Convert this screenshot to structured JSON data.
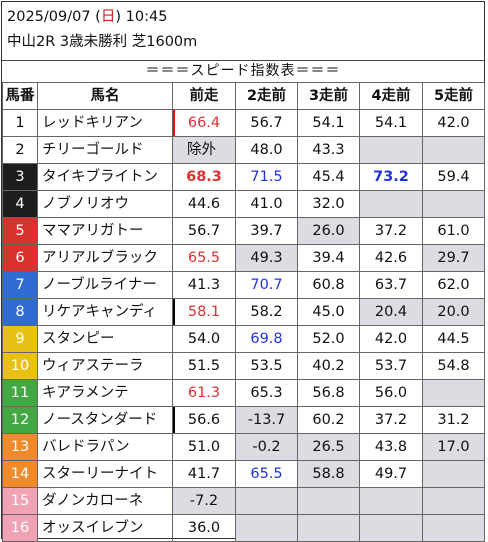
{
  "header": {
    "date": "2025/09/07",
    "dow_open": " (",
    "dow": "日",
    "dow_close": ")",
    "time": " 10:45",
    "race": "中山2R 3歳未勝利 芝1600m"
  },
  "banner": "＝＝＝スピード指数表＝＝＝",
  "columns": [
    "馬番",
    "馬名",
    "前走",
    "2走前",
    "3走前",
    "4走前",
    "5走前"
  ],
  "colors": {
    "waku1": "#ffffff",
    "waku2": "#1e1e1e",
    "waku3": "#d9312c",
    "waku4": "#2f6bd1",
    "waku5": "#e7c215",
    "waku6": "#43a744",
    "waku7": "#f08a2a",
    "waku8": "#f0a3b5",
    "missing_cell": "#dcdde2",
    "red_value": "#e03030",
    "blue_value": "#2233dd"
  },
  "rows": [
    {
      "num": "1",
      "name": "レッドキリアン",
      "s": [
        "66.4",
        "56.7",
        "54.1",
        "54.1",
        "42.0"
      ]
    },
    {
      "num": "2",
      "name": "チリーゴールド",
      "s": [
        "除外",
        "48.0",
        "43.3",
        "",
        ""
      ]
    },
    {
      "num": "3",
      "name": "タイキブライトン",
      "s": [
        "68.3",
        "71.5",
        "45.4",
        "73.2",
        "59.4"
      ]
    },
    {
      "num": "4",
      "name": "ノブノリオウ",
      "s": [
        "44.6",
        "41.0",
        "32.0",
        "",
        ""
      ]
    },
    {
      "num": "5",
      "name": "ママアリガトー",
      "s": [
        "56.7",
        "39.7",
        "26.0",
        "37.2",
        "61.0"
      ]
    },
    {
      "num": "6",
      "name": "アリアルブラック",
      "s": [
        "65.5",
        "49.3",
        "39.4",
        "42.6",
        "29.7"
      ]
    },
    {
      "num": "7",
      "name": "ノーブルライナー",
      "s": [
        "41.3",
        "70.7",
        "60.8",
        "63.7",
        "62.0"
      ]
    },
    {
      "num": "8",
      "name": "リケアキャンディ",
      "s": [
        "58.1",
        "58.2",
        "45.0",
        "20.4",
        "20.0"
      ]
    },
    {
      "num": "9",
      "name": "スタンピー",
      "s": [
        "54.0",
        "69.8",
        "52.0",
        "42.0",
        "44.5"
      ]
    },
    {
      "num": "10",
      "name": "ウィアステーラ",
      "s": [
        "51.5",
        "53.5",
        "40.2",
        "53.7",
        "54.8"
      ]
    },
    {
      "num": "11",
      "name": "キアラメンテ",
      "s": [
        "61.3",
        "65.3",
        "56.8",
        "56.0",
        ""
      ]
    },
    {
      "num": "12",
      "name": "ノースタンダード",
      "s": [
        "56.6",
        "-13.7",
        "60.2",
        "37.2",
        "31.2"
      ]
    },
    {
      "num": "13",
      "name": "バレドラパン",
      "s": [
        "51.0",
        "-0.2",
        "26.5",
        "43.8",
        "17.0"
      ]
    },
    {
      "num": "14",
      "name": "スターリーナイト",
      "s": [
        "41.7",
        "65.5",
        "58.8",
        "49.7",
        ""
      ]
    },
    {
      "num": "15",
      "name": "ダノンカローネ",
      "s": [
        "-7.2",
        "",
        "",
        "",
        ""
      ]
    },
    {
      "num": "16",
      "name": "オッスイレブン",
      "s": [
        "36.0",
        "",
        "",
        "",
        ""
      ]
    }
  ]
}
